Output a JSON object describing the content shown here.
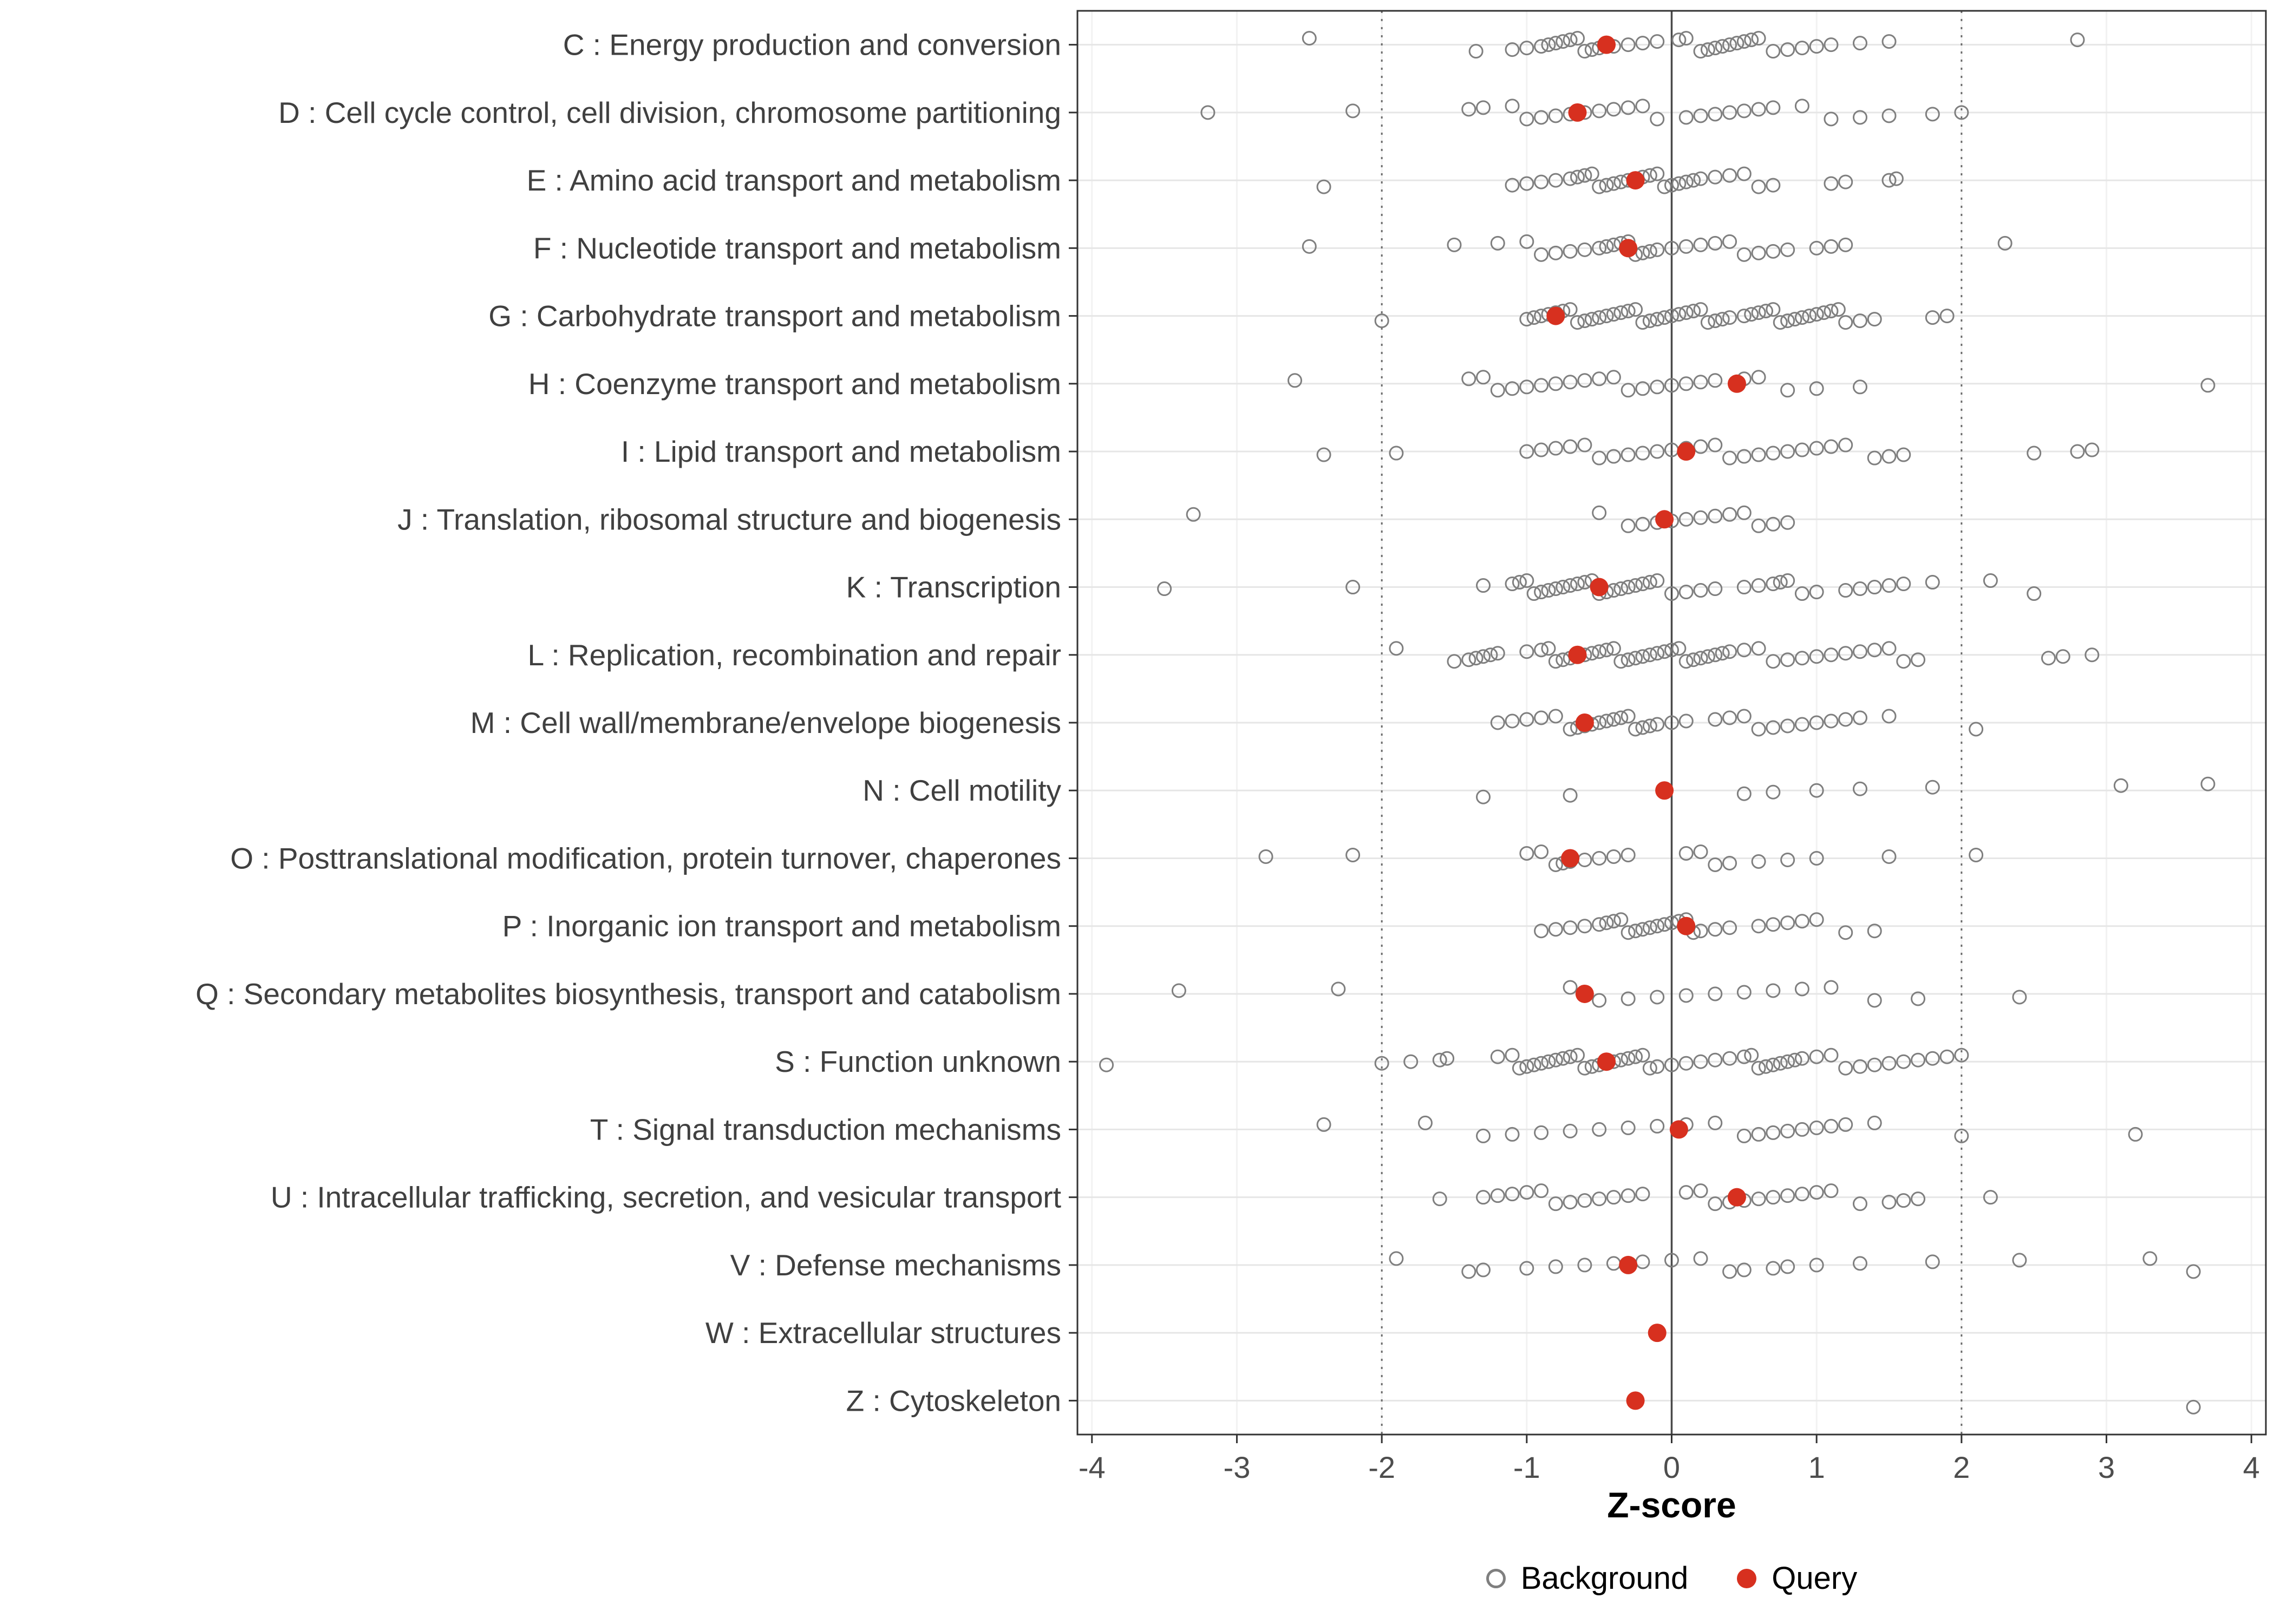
{
  "chart_data": {
    "type": "scatter",
    "title": "",
    "xlabel": "Z-score",
    "ylabel": "",
    "xlim": [
      -4.1,
      4.1
    ],
    "x_ticks": [
      -4,
      -3,
      -2,
      -1,
      0,
      1,
      2,
      3,
      4
    ],
    "grid": "horizontal-major",
    "reference_lines": {
      "solid": [
        0
      ],
      "dotted": [
        -2,
        2
      ]
    },
    "legend_position": "bottom",
    "legend": [
      {
        "label": "Background",
        "marker": "open-circle",
        "color": "#7f7f7f"
      },
      {
        "label": "Query",
        "marker": "filled-circle",
        "color": "#d7301f"
      }
    ],
    "colors": {
      "background_stroke": "#7f7f7f",
      "query_fill": "#d7301f",
      "grid": "#e6e6e6",
      "minor_grid": "#f2f2f2",
      "panel_border": "#333333",
      "zero_line": "#4a4a4a",
      "dotted_line": "#6b6b6b",
      "axis_text": "#4d4d4d",
      "category_text": "#404040"
    },
    "categories": [
      "C : Energy production and conversion",
      "D : Cell cycle control, cell division, chromosome partitioning",
      "E : Amino acid transport and metabolism",
      "F : Nucleotide transport and metabolism",
      "G : Carbohydrate transport and metabolism",
      "H : Coenzyme transport and metabolism",
      "I : Lipid transport and metabolism",
      "J : Translation, ribosomal structure and biogenesis",
      "K : Transcription",
      "L : Replication, recombination and repair",
      "M : Cell wall/membrane/envelope biogenesis",
      "N : Cell motility",
      "O : Posttranslational modification, protein turnover, chaperones",
      "P : Inorganic ion transport and metabolism",
      "Q : Secondary metabolites biosynthesis, transport and catabolism",
      "S : Function unknown",
      "T : Signal transduction mechanisms",
      "U : Intracellular trafficking, secretion, and vesicular transport",
      "V : Defense mechanisms",
      "W : Extracellular structures",
      "Z : Cytoskeleton"
    ],
    "series": [
      {
        "name": "Query",
        "values": [
          -0.45,
          -0.65,
          -0.25,
          -0.3,
          -0.8,
          0.45,
          0.1,
          -0.05,
          -0.5,
          -0.65,
          -0.6,
          -0.05,
          -0.7,
          0.1,
          -0.6,
          -0.45,
          0.05,
          0.45,
          -0.3,
          -0.1,
          -0.25
        ]
      }
    ],
    "background_points": [
      [
        -2.5,
        -1.35,
        -1.1,
        -1.0,
        -0.9,
        -0.85,
        -0.8,
        -0.75,
        -0.7,
        -0.65,
        -0.6,
        -0.55,
        -0.5,
        -0.4,
        -0.3,
        -0.2,
        -0.1,
        0.05,
        0.1,
        0.2,
        0.25,
        0.3,
        0.35,
        0.4,
        0.45,
        0.5,
        0.55,
        0.6,
        0.7,
        0.8,
        0.9,
        1.0,
        1.1,
        1.3,
        1.5,
        2.8
      ],
      [
        -3.2,
        -2.2,
        -1.4,
        -1.3,
        -1.1,
        -1.0,
        -0.9,
        -0.8,
        -0.7,
        -0.6,
        -0.5,
        -0.4,
        -0.3,
        -0.2,
        -0.1,
        0.1,
        0.2,
        0.3,
        0.4,
        0.5,
        0.6,
        0.7,
        0.9,
        1.1,
        1.3,
        1.5,
        1.8,
        2.0
      ],
      [
        -2.4,
        -1.1,
        -1.0,
        -0.9,
        -0.8,
        -0.7,
        -0.65,
        -0.6,
        -0.55,
        -0.5,
        -0.45,
        -0.4,
        -0.35,
        -0.3,
        -0.25,
        -0.2,
        -0.15,
        -0.1,
        -0.05,
        0.0,
        0.05,
        0.1,
        0.15,
        0.2,
        0.3,
        0.4,
        0.5,
        0.6,
        0.7,
        1.1,
        1.2,
        1.5,
        1.55
      ],
      [
        -2.5,
        -1.5,
        -1.2,
        -1.0,
        -0.9,
        -0.8,
        -0.7,
        -0.6,
        -0.5,
        -0.45,
        -0.4,
        -0.35,
        -0.3,
        -0.25,
        -0.2,
        -0.15,
        -0.1,
        0.0,
        0.1,
        0.2,
        0.3,
        0.4,
        0.5,
        0.6,
        0.7,
        0.8,
        1.0,
        1.1,
        1.2,
        2.3
      ],
      [
        -2.0,
        -1.0,
        -0.95,
        -0.9,
        -0.85,
        -0.8,
        -0.75,
        -0.7,
        -0.65,
        -0.6,
        -0.55,
        -0.5,
        -0.45,
        -0.4,
        -0.35,
        -0.3,
        -0.25,
        -0.2,
        -0.15,
        -0.1,
        -0.05,
        0.0,
        0.05,
        0.1,
        0.15,
        0.2,
        0.25,
        0.3,
        0.35,
        0.4,
        0.5,
        0.55,
        0.6,
        0.65,
        0.7,
        0.75,
        0.8,
        0.85,
        0.9,
        0.95,
        1.0,
        1.05,
        1.1,
        1.15,
        1.2,
        1.3,
        1.4,
        1.8,
        1.9
      ],
      [
        -2.6,
        -1.4,
        -1.3,
        -1.2,
        -1.1,
        -1.0,
        -0.9,
        -0.8,
        -0.7,
        -0.6,
        -0.5,
        -0.4,
        -0.3,
        -0.2,
        -0.1,
        0.0,
        0.1,
        0.2,
        0.3,
        0.5,
        0.6,
        0.8,
        1.0,
        1.3,
        3.7
      ],
      [
        -2.4,
        -1.9,
        -1.0,
        -0.9,
        -0.8,
        -0.7,
        -0.6,
        -0.5,
        -0.4,
        -0.3,
        -0.2,
        -0.1,
        0.0,
        0.1,
        0.2,
        0.3,
        0.4,
        0.5,
        0.6,
        0.7,
        0.8,
        0.9,
        1.0,
        1.1,
        1.2,
        1.4,
        1.5,
        1.6,
        2.5,
        2.8,
        2.9
      ],
      [
        -3.3,
        -0.5,
        -0.3,
        -0.2,
        -0.1,
        0.0,
        0.1,
        0.2,
        0.3,
        0.4,
        0.5,
        0.6,
        0.7,
        0.8
      ],
      [
        -3.5,
        -2.2,
        -1.3,
        -1.1,
        -1.05,
        -1.0,
        -0.95,
        -0.9,
        -0.85,
        -0.8,
        -0.75,
        -0.7,
        -0.65,
        -0.6,
        -0.55,
        -0.5,
        -0.45,
        -0.4,
        -0.35,
        -0.3,
        -0.25,
        -0.2,
        -0.15,
        -0.1,
        0.0,
        0.1,
        0.2,
        0.3,
        0.5,
        0.6,
        0.7,
        0.75,
        0.8,
        0.9,
        1.0,
        1.2,
        1.3,
        1.4,
        1.5,
        1.6,
        1.8,
        2.2,
        2.5
      ],
      [
        -1.9,
        -1.5,
        -1.4,
        -1.35,
        -1.3,
        -1.25,
        -1.2,
        -1.0,
        -0.9,
        -0.85,
        -0.8,
        -0.75,
        -0.7,
        -0.65,
        -0.6,
        -0.55,
        -0.5,
        -0.45,
        -0.4,
        -0.35,
        -0.3,
        -0.25,
        -0.2,
        -0.15,
        -0.1,
        -0.05,
        0.0,
        0.05,
        0.1,
        0.15,
        0.2,
        0.25,
        0.3,
        0.35,
        0.4,
        0.5,
        0.6,
        0.7,
        0.8,
        0.9,
        1.0,
        1.1,
        1.2,
        1.3,
        1.4,
        1.5,
        1.6,
        1.7,
        2.6,
        2.7,
        2.9
      ],
      [
        -1.2,
        -1.1,
        -1.0,
        -0.9,
        -0.8,
        -0.7,
        -0.65,
        -0.6,
        -0.55,
        -0.5,
        -0.45,
        -0.4,
        -0.35,
        -0.3,
        -0.25,
        -0.2,
        -0.15,
        -0.1,
        0.0,
        0.1,
        0.3,
        0.4,
        0.5,
        0.6,
        0.7,
        0.8,
        0.9,
        1.0,
        1.1,
        1.2,
        1.3,
        1.5,
        2.1
      ],
      [
        -1.3,
        -0.7,
        0.5,
        0.7,
        1.0,
        1.3,
        1.8,
        3.1,
        3.7
      ],
      [
        -2.8,
        -2.2,
        -1.0,
        -0.9,
        -0.8,
        -0.75,
        -0.7,
        -0.6,
        -0.5,
        -0.4,
        -0.3,
        0.1,
        0.2,
        0.3,
        0.4,
        0.6,
        0.8,
        1.0,
        1.5,
        2.1
      ],
      [
        -0.9,
        -0.8,
        -0.7,
        -0.6,
        -0.5,
        -0.45,
        -0.4,
        -0.35,
        -0.3,
        -0.25,
        -0.2,
        -0.15,
        -0.1,
        -0.05,
        0.0,
        0.05,
        0.1,
        0.15,
        0.2,
        0.3,
        0.4,
        0.6,
        0.7,
        0.8,
        0.9,
        1.0,
        1.2,
        1.4
      ],
      [
        -3.4,
        -2.3,
        -0.7,
        -0.5,
        -0.3,
        -0.1,
        0.1,
        0.3,
        0.5,
        0.7,
        0.9,
        1.1,
        1.4,
        1.7,
        2.4
      ],
      [
        -3.9,
        -2.0,
        -1.8,
        -1.6,
        -1.55,
        -1.2,
        -1.1,
        -1.05,
        -1.0,
        -0.95,
        -0.9,
        -0.85,
        -0.8,
        -0.75,
        -0.7,
        -0.65,
        -0.6,
        -0.55,
        -0.5,
        -0.45,
        -0.4,
        -0.35,
        -0.3,
        -0.25,
        -0.2,
        -0.15,
        -0.1,
        0.0,
        0.1,
        0.2,
        0.3,
        0.4,
        0.5,
        0.55,
        0.6,
        0.65,
        0.7,
        0.75,
        0.8,
        0.85,
        0.9,
        1.0,
        1.1,
        1.2,
        1.3,
        1.4,
        1.5,
        1.6,
        1.7,
        1.8,
        1.9,
        2.0
      ],
      [
        -2.4,
        -1.7,
        -1.3,
        -1.1,
        -0.9,
        -0.7,
        -0.5,
        -0.3,
        -0.1,
        0.1,
        0.3,
        0.5,
        0.6,
        0.7,
        0.8,
        0.9,
        1.0,
        1.1,
        1.2,
        1.4,
        2.0,
        3.2
      ],
      [
        -1.6,
        -1.3,
        -1.2,
        -1.1,
        -1.0,
        -0.9,
        -0.8,
        -0.7,
        -0.6,
        -0.5,
        -0.4,
        -0.3,
        -0.2,
        0.1,
        0.2,
        0.3,
        0.4,
        0.5,
        0.6,
        0.7,
        0.8,
        0.9,
        1.0,
        1.1,
        1.3,
        1.5,
        1.6,
        1.7,
        2.2
      ],
      [
        -1.9,
        -1.4,
        -1.3,
        -1.0,
        -0.8,
        -0.6,
        -0.4,
        -0.2,
        0.0,
        0.2,
        0.4,
        0.5,
        0.7,
        0.8,
        1.0,
        1.3,
        1.8,
        2.4,
        3.3,
        3.6
      ],
      [],
      [
        3.6
      ]
    ]
  }
}
